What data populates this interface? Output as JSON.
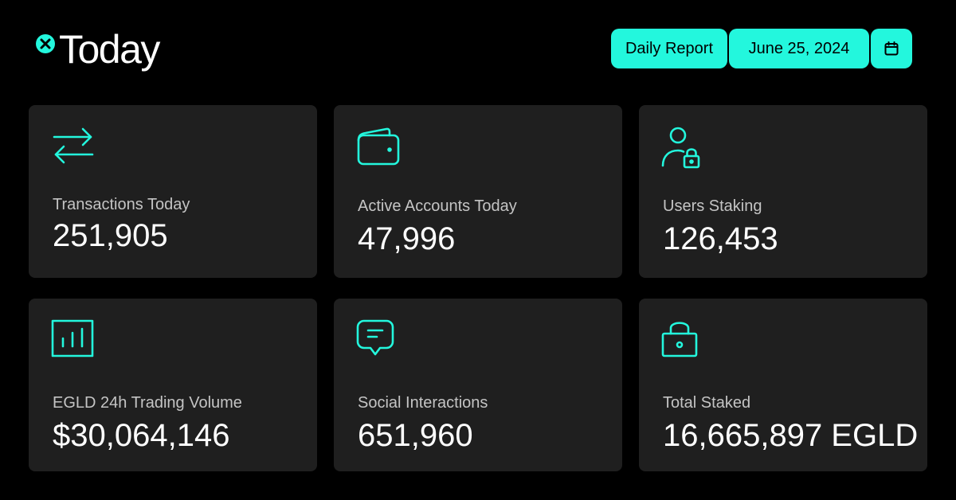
{
  "header": {
    "logo_icon": "multiversx-x-icon",
    "title": "Today"
  },
  "controls": {
    "report_label": "Daily Report",
    "date_label": "June 25, 2024",
    "calendar_icon": "calendar-icon"
  },
  "colors": {
    "accent": "#23f7dd",
    "background": "#000000",
    "card": "#1f1f1f",
    "label": "#c4c4c4"
  },
  "stats": [
    {
      "icon": "arrows-exchange-icon",
      "label": "Transactions Today",
      "value": "251,905"
    },
    {
      "icon": "wallet-icon",
      "label": "Active Accounts Today",
      "value": "47,996"
    },
    {
      "icon": "user-lock-icon",
      "label": "Users Staking",
      "value": "126,453"
    },
    {
      "icon": "bar-chart-icon",
      "label": "EGLD 24h Trading Volume",
      "value": "$30,064,146"
    },
    {
      "icon": "chat-bubble-icon",
      "label": "Social Interactions",
      "value": "651,960"
    },
    {
      "icon": "lock-icon",
      "label": "Total Staked",
      "value": "16,665,897 EGLD"
    }
  ]
}
